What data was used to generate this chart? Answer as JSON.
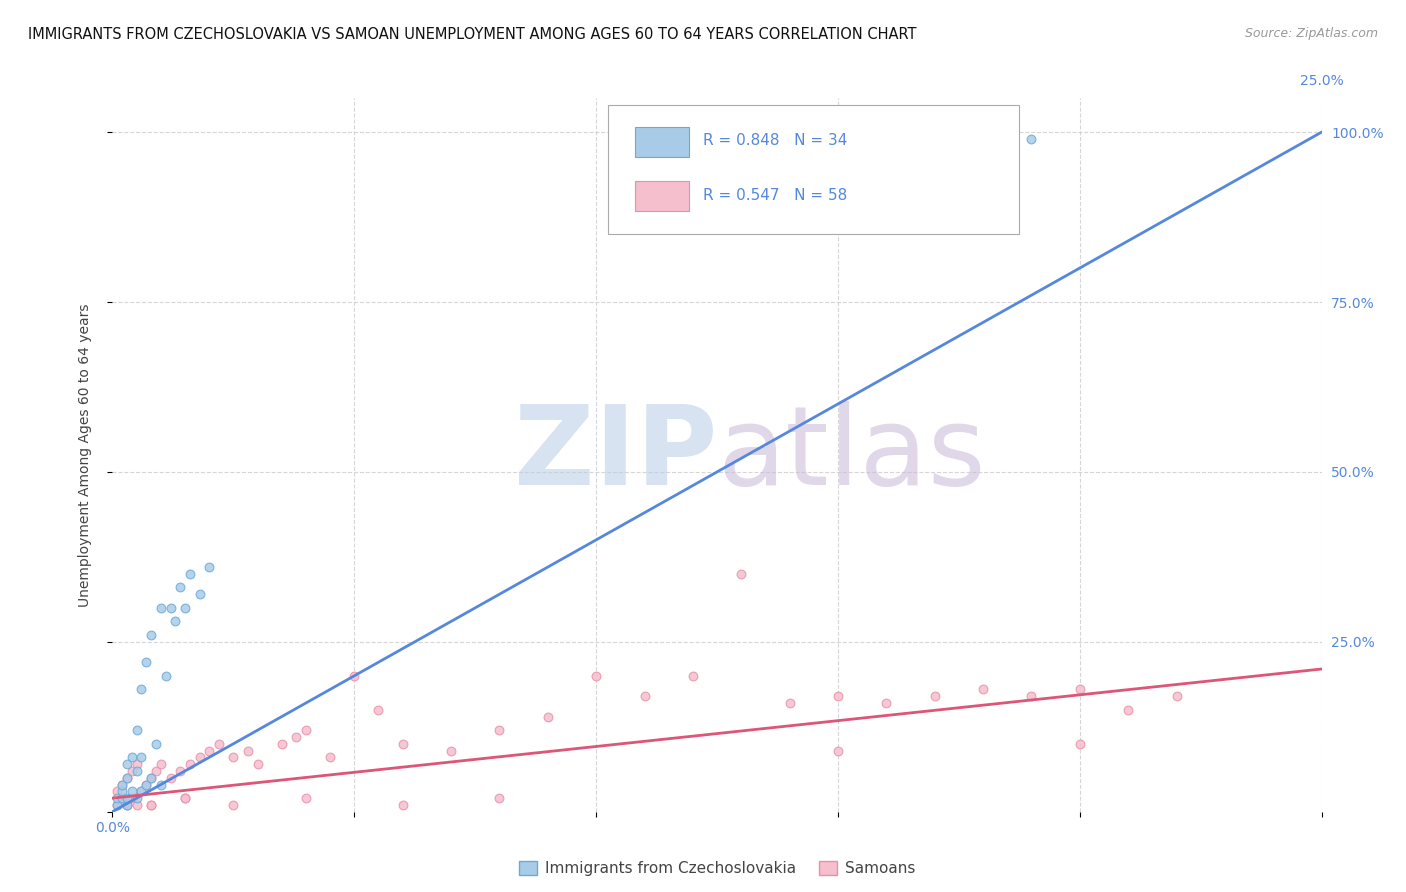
{
  "title": "IMMIGRANTS FROM CZECHOSLOVAKIA VS SAMOAN UNEMPLOYMENT AMONG AGES 60 TO 64 YEARS CORRELATION CHART",
  "source": "Source: ZipAtlas.com",
  "ylabel": "Unemployment Among Ages 60 to 64 years",
  "xlim": [
    0.0,
    0.25
  ],
  "ylim": [
    0.0,
    1.05
  ],
  "xticks": [
    0.0,
    0.05,
    0.1,
    0.15,
    0.2,
    0.25
  ],
  "yticks": [
    0.0,
    0.25,
    0.5,
    0.75,
    1.0
  ],
  "xtick_labels_left": [
    "0.0%",
    "",
    "",
    "",
    "",
    ""
  ],
  "xtick_labels_right": [
    "",
    "",
    "",
    "",
    "",
    "25.0%"
  ],
  "ytick_labels_right": [
    "",
    "25.0%",
    "50.0%",
    "75.0%",
    "100.0%"
  ],
  "blue_color": "#a8cce8",
  "blue_edge_color": "#6aaad6",
  "pink_color": "#f5bfce",
  "pink_edge_color": "#e890a8",
  "blue_line_color": "#5588dd",
  "pink_line_color": "#dd5577",
  "watermark_zip_color": "#b8cce8",
  "watermark_atlas_color": "#c8b8d8",
  "legend_R_blue": "R = 0.848",
  "legend_N_blue": "N = 34",
  "legend_R_pink": "R = 0.547",
  "legend_N_pink": "N = 58",
  "legend_label_blue": "Immigrants from Czechoslovakia",
  "legend_label_pink": "Samoans",
  "blue_scatter_x": [
    0.001,
    0.001,
    0.002,
    0.002,
    0.002,
    0.003,
    0.003,
    0.003,
    0.003,
    0.004,
    0.004,
    0.005,
    0.005,
    0.005,
    0.006,
    0.006,
    0.006,
    0.007,
    0.007,
    0.008,
    0.008,
    0.009,
    0.01,
    0.01,
    0.011,
    0.012,
    0.013,
    0.014,
    0.015,
    0.016,
    0.018,
    0.02,
    0.17,
    0.19
  ],
  "blue_scatter_y": [
    0.01,
    0.02,
    0.02,
    0.03,
    0.04,
    0.01,
    0.02,
    0.05,
    0.07,
    0.03,
    0.08,
    0.02,
    0.06,
    0.12,
    0.03,
    0.08,
    0.18,
    0.04,
    0.22,
    0.05,
    0.26,
    0.1,
    0.04,
    0.3,
    0.2,
    0.3,
    0.28,
    0.33,
    0.3,
    0.35,
    0.32,
    0.36,
    1.0,
    0.99
  ],
  "pink_scatter_x": [
    0.001,
    0.001,
    0.002,
    0.002,
    0.003,
    0.003,
    0.004,
    0.004,
    0.005,
    0.005,
    0.006,
    0.007,
    0.008,
    0.008,
    0.009,
    0.01,
    0.012,
    0.014,
    0.015,
    0.016,
    0.018,
    0.02,
    0.022,
    0.025,
    0.028,
    0.03,
    0.035,
    0.038,
    0.04,
    0.045,
    0.05,
    0.055,
    0.06,
    0.07,
    0.08,
    0.09,
    0.1,
    0.11,
    0.12,
    0.13,
    0.14,
    0.15,
    0.16,
    0.17,
    0.18,
    0.19,
    0.2,
    0.21,
    0.22,
    0.003,
    0.008,
    0.015,
    0.025,
    0.04,
    0.06,
    0.08,
    0.15,
    0.2
  ],
  "pink_scatter_y": [
    0.01,
    0.03,
    0.02,
    0.04,
    0.01,
    0.05,
    0.02,
    0.06,
    0.01,
    0.07,
    0.03,
    0.04,
    0.01,
    0.05,
    0.06,
    0.07,
    0.05,
    0.06,
    0.02,
    0.07,
    0.08,
    0.09,
    0.1,
    0.08,
    0.09,
    0.07,
    0.1,
    0.11,
    0.12,
    0.08,
    0.2,
    0.15,
    0.1,
    0.09,
    0.12,
    0.14,
    0.2,
    0.17,
    0.2,
    0.35,
    0.16,
    0.17,
    0.16,
    0.17,
    0.18,
    0.17,
    0.18,
    0.15,
    0.17,
    0.01,
    0.01,
    0.02,
    0.01,
    0.02,
    0.01,
    0.02,
    0.09,
    0.1
  ],
  "blue_regline_x": [
    0.0,
    0.25
  ],
  "blue_regline_y": [
    0.0,
    1.0
  ],
  "pink_regline_x": [
    0.0,
    0.25
  ],
  "pink_regline_y": [
    0.02,
    0.21
  ],
  "title_fontsize": 10.5,
  "source_fontsize": 9,
  "axis_label_fontsize": 10,
  "tick_fontsize": 10,
  "legend_fontsize": 11,
  "marker_size": 40,
  "background_color": "#ffffff",
  "grid_color": "#cccccc",
  "grid_alpha": 0.8
}
